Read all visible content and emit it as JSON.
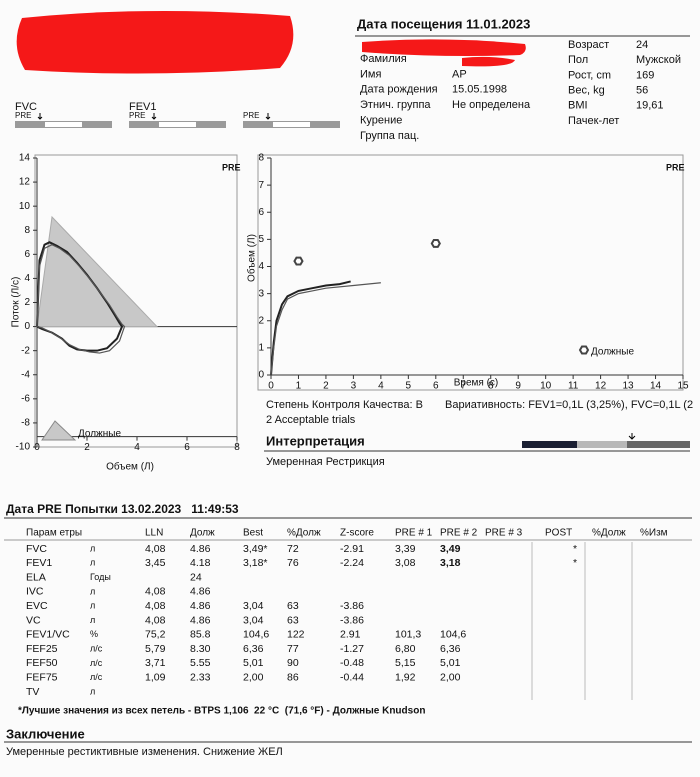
{
  "header": {
    "visit": "Дата посещения 11.01.2023"
  },
  "patient": {
    "left": [
      {
        "label": "Фамилия"
      },
      {
        "label": "Имя",
        "value": "АР"
      },
      {
        "label": "Дата рождения",
        "value": "15.05.1998"
      },
      {
        "label": "Этнич. группа",
        "value": "Не определена"
      },
      {
        "label": "Курение"
      },
      {
        "label": "Группа пац."
      }
    ],
    "right": [
      {
        "label": "Возраст",
        "value": "24"
      },
      {
        "label": "Пол",
        "value": "Мужской"
      },
      {
        "label": "Рост, cm",
        "value": "169"
      },
      {
        "label": "Вес, kg",
        "value": "56"
      },
      {
        "label": "BMI",
        "value": "19,61"
      },
      {
        "label": "Пачек-лет"
      }
    ]
  },
  "indicators": [
    {
      "label": "FVC",
      "tag": "PRE"
    },
    {
      "label": "FEV1",
      "tag": "PRE"
    },
    {
      "tag": "PRE"
    }
  ],
  "chart_data": [
    {
      "type": "line",
      "badge": "PRE",
      "xlabel": "Объем (Л)",
      "ylabel": "Поток (Л/с)",
      "xlim": [
        0,
        8
      ],
      "ylim": [
        -10,
        14
      ],
      "xticks": [
        0,
        2,
        4,
        6,
        8
      ],
      "yticks": [
        -10,
        -8,
        -6,
        -4,
        -2,
        0,
        2,
        4,
        6,
        8,
        10,
        12,
        14
      ],
      "series": [
        {
          "name": "Должные",
          "color": "#c8c8c8",
          "fill": true,
          "x": [
            0,
            0.6,
            4.8
          ],
          "values": [
            0,
            9.1,
            0
          ]
        },
        {
          "color": "#222222",
          "x": [
            0,
            0.1,
            0.3,
            0.5,
            0.8,
            1.2,
            1.6,
            2.0,
            2.4,
            2.8,
            3.1,
            3.3,
            3.4,
            3.2,
            2.8,
            2.4,
            2.0,
            1.6,
            1.3,
            1.0,
            0.6,
            0.2,
            0
          ],
          "values": [
            0,
            5.5,
            6.8,
            7.0,
            6.7,
            6.2,
            5.3,
            4.3,
            3.2,
            2.0,
            1.0,
            0.3,
            0,
            -1.0,
            -1.8,
            -2.0,
            -2.0,
            -1.9,
            -1.6,
            -1.0,
            -0.5,
            -0.2,
            0
          ]
        },
        {
          "color": "#555555",
          "x": [
            0,
            0.1,
            0.3,
            0.6,
            0.9,
            1.3,
            1.7,
            2.1,
            2.5,
            2.9,
            3.2,
            3.4,
            3.5,
            3.3,
            2.9,
            2.5,
            2.1,
            1.7,
            1.3,
            0.9,
            0.5,
            0.2,
            0
          ],
          "values": [
            0,
            5.0,
            6.5,
            6.8,
            6.5,
            5.9,
            5.0,
            4.0,
            2.9,
            1.8,
            0.8,
            0.2,
            0,
            -1.2,
            -2.0,
            -2.2,
            -2.1,
            -1.9,
            -1.5,
            -0.9,
            -0.4,
            -0.1,
            0
          ]
        }
      ]
    },
    {
      "type": "line",
      "badge": "PRE",
      "xlabel": "Время (с)",
      "ylabel": "Объем (Л)",
      "xlim": [
        0,
        15
      ],
      "ylim": [
        0,
        8
      ],
      "xticks": [
        0,
        1,
        2,
        3,
        4,
        5,
        6,
        7,
        8,
        9,
        10,
        11,
        12,
        13,
        14,
        15
      ],
      "yticks": [
        0,
        1,
        2,
        3,
        4,
        5,
        6,
        7,
        8
      ],
      "series": [
        {
          "name": "Должные",
          "marker": true,
          "color": "#444444",
          "x": [
            1,
            6
          ],
          "values": [
            4.2,
            4.85
          ]
        },
        {
          "color": "#222222",
          "x": [
            0,
            0.1,
            0.2,
            0.4,
            0.6,
            1,
            1.5,
            2,
            2.5,
            2.9
          ],
          "values": [
            0,
            1.2,
            2.0,
            2.6,
            2.9,
            3.1,
            3.2,
            3.3,
            3.35,
            3.45
          ]
        },
        {
          "color": "#555555",
          "x": [
            0,
            0.1,
            0.2,
            0.4,
            0.6,
            1,
            1.5,
            2,
            3,
            4
          ],
          "values": [
            0,
            1.0,
            1.8,
            2.4,
            2.8,
            3.0,
            3.1,
            3.2,
            3.3,
            3.4
          ]
        }
      ]
    }
  ],
  "quality": {
    "grade": "Степень Контроля Качества: B",
    "variability": "Вариативность: FEV1=0,1L (3,25%), FVC=0,1L (2",
    "trials": "2 Acceptable trials"
  },
  "interpretation": {
    "title": "Интерпретация",
    "text": "Умеренная Рестрикция"
  },
  "table": {
    "title": "Дата PRE Попытки 13.02.2023   11:49:53",
    "headers": {
      "param": "Парам етры",
      "lln": "LLN",
      "pred": "Долж",
      "best": "Best",
      "pct": "%Долж",
      "z": "Z-score",
      "pre1": "PRE # 1",
      "pre2": "PRE # 2",
      "pre3": "PRE # 3",
      "post": "POST",
      "postpct": "%Долж",
      "change": "%Изм"
    },
    "rows": [
      {
        "param": "FVC",
        "unit": "л",
        "lln": "4,08",
        "pred": "4.86",
        "best": "3,49*",
        "pct": "72",
        "z": "-2.91",
        "pre1": "3,39",
        "pre2": "3,49",
        "post": "*",
        "pre2_bold": true
      },
      {
        "param": "FEV1",
        "unit": "л",
        "lln": "3,45",
        "pred": "4.18",
        "best": "3,18*",
        "pct": "76",
        "z": "-2.24",
        "pre1": "3,08",
        "pre2": "3,18",
        "post": "*",
        "pre2_bold": true
      },
      {
        "param": "ELA",
        "unit": "Годы",
        "pred": "24"
      },
      {
        "param": "IVC",
        "unit": "л",
        "lln": "4,08",
        "pred": "4.86"
      },
      {
        "param": "EVC",
        "unit": "л",
        "lln": "4,08",
        "pred": "4.86",
        "best": "3,04",
        "pct": "63",
        "z": "-3.86"
      },
      {
        "param": "VC",
        "unit": "л",
        "lln": "4,08",
        "pred": "4.86",
        "best": "3,04",
        "pct": "63",
        "z": "-3.86"
      },
      {
        "param": "FEV1/VC",
        "unit": "%",
        "lln": "75,2",
        "pred": "85.8",
        "best": "104,6",
        "pct": "122",
        "z": "2.91",
        "pre1": "101,3",
        "pre2": "104,6"
      },
      {
        "param": "FEF25",
        "unit": "л/с",
        "lln": "5,79",
        "pred": "8.30",
        "best": "6,36",
        "pct": "77",
        "z": "-1.27",
        "pre1": "6,80",
        "pre2": "6,36"
      },
      {
        "param": "FEF50",
        "unit": "л/с",
        "lln": "3,71",
        "pred": "5.55",
        "best": "5,01",
        "pct": "90",
        "z": "-0.48",
        "pre1": "5,15",
        "pre2": "5,01"
      },
      {
        "param": "FEF75",
        "unit": "л/с",
        "lln": "1,09",
        "pred": "2.33",
        "best": "2,00",
        "pct": "86",
        "z": "-0.44",
        "pre1": "1,92",
        "pre2": "2,00"
      },
      {
        "param": "TV",
        "unit": "л"
      }
    ],
    "footnote": "*Лучшие значения из всех петель - BTPS 1,106  22 °C  (71,6 °F) - Должные Knudson"
  },
  "conclusion": {
    "title": "Заключение",
    "text": "Умеренные рестиктивные изменения. Снижение ЖЕЛ"
  }
}
